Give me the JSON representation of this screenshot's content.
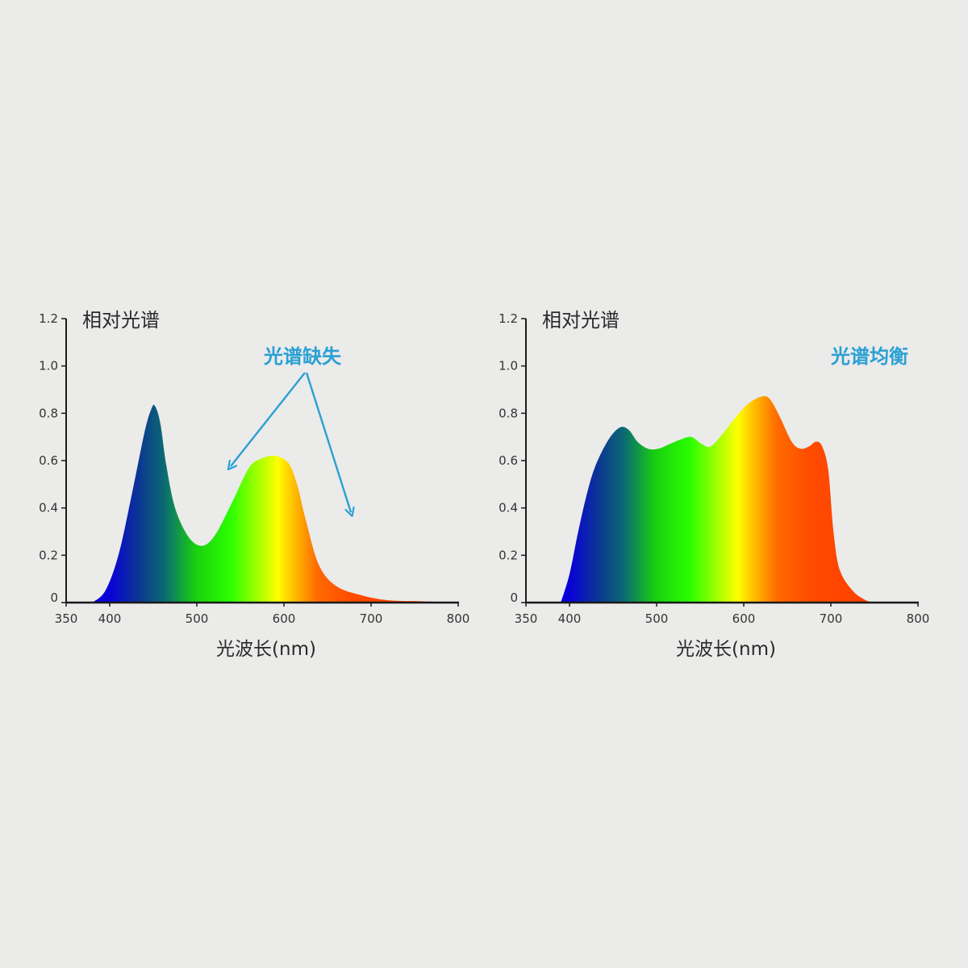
{
  "colors": {
    "background": "#ebebea",
    "axis": "#1a1a1a",
    "text": "#2a2a2a",
    "annotation": "#2aa0d4"
  },
  "chart_data": [
    {
      "type": "area",
      "title": "",
      "ylabel": "相对光谱",
      "xlabel": "光波长(nm)",
      "xlim": [
        350,
        800
      ],
      "ylim": [
        0,
        1.2
      ],
      "x_ticks": [
        350,
        400,
        500,
        600,
        700,
        800
      ],
      "y_ticks": [
        0,
        0.2,
        0.4,
        0.6,
        0.8,
        1.0,
        1.2
      ],
      "y_tick_labels": [
        "0",
        "0.2",
        "0.4",
        "0.6",
        "0.8",
        "1.0",
        "1.2"
      ],
      "fill": "visible-spectrum-gradient",
      "annotation": {
        "text": "光谱缺失",
        "arrows_to_nm": [
          [
            535,
            0.58
          ],
          [
            675,
            0.38
          ]
        ]
      },
      "series": [
        {
          "x": [
            380,
            395,
            410,
            425,
            440,
            448,
            452,
            458,
            465,
            475,
            490,
            505,
            520,
            540,
            560,
            575,
            590,
            605,
            615,
            625,
            640,
            660,
            690,
            720,
            760,
            800
          ],
          "y": [
            0.0,
            0.05,
            0.2,
            0.45,
            0.72,
            0.82,
            0.83,
            0.76,
            0.58,
            0.4,
            0.28,
            0.24,
            0.28,
            0.42,
            0.57,
            0.61,
            0.62,
            0.59,
            0.5,
            0.35,
            0.16,
            0.07,
            0.03,
            0.01,
            0.005,
            0.0
          ]
        }
      ]
    },
    {
      "type": "area",
      "title": "",
      "ylabel": "相对光谱",
      "xlabel": "光波长(nm)",
      "xlim": [
        350,
        800
      ],
      "ylim": [
        0,
        1.2
      ],
      "x_ticks": [
        350,
        400,
        500,
        600,
        700,
        800
      ],
      "y_ticks": [
        0,
        0.2,
        0.4,
        0.6,
        0.8,
        1.0,
        1.2
      ],
      "y_tick_labels": [
        "0",
        "0.2",
        "0.4",
        "0.6",
        "0.8",
        "1.0",
        "1.2"
      ],
      "fill": "visible-spectrum-gradient",
      "annotation": {
        "text": "光谱均衡"
      },
      "series": [
        {
          "x": [
            390,
            400,
            410,
            420,
            430,
            445,
            458,
            468,
            478,
            490,
            502,
            515,
            528,
            540,
            552,
            562,
            575,
            590,
            605,
            620,
            630,
            642,
            655,
            665,
            675,
            683,
            690,
            697,
            703,
            710,
            725,
            740,
            750
          ],
          "y": [
            0.0,
            0.12,
            0.3,
            0.46,
            0.58,
            0.69,
            0.74,
            0.73,
            0.68,
            0.65,
            0.65,
            0.67,
            0.69,
            0.7,
            0.67,
            0.66,
            0.71,
            0.78,
            0.84,
            0.87,
            0.86,
            0.78,
            0.68,
            0.65,
            0.66,
            0.68,
            0.66,
            0.56,
            0.3,
            0.14,
            0.05,
            0.01,
            0.0
          ]
        }
      ]
    }
  ]
}
